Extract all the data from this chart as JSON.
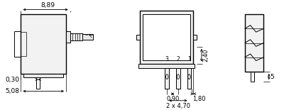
{
  "bg_color": "#ffffff",
  "line_color": "#000000",
  "annotations": {
    "dim_889": "8,89",
    "dim_240": "2,40",
    "dim_030": "0,30",
    "dim_508": "5,08",
    "dim_090": "0,90",
    "dim_180": "1,80",
    "dim_2x470": "2 x 4,70",
    "dim_5": "5",
    "pin1": "1",
    "pin2": "2",
    "pin3": "3"
  },
  "figsize": [
    4.0,
    1.55
  ],
  "dpi": 100
}
